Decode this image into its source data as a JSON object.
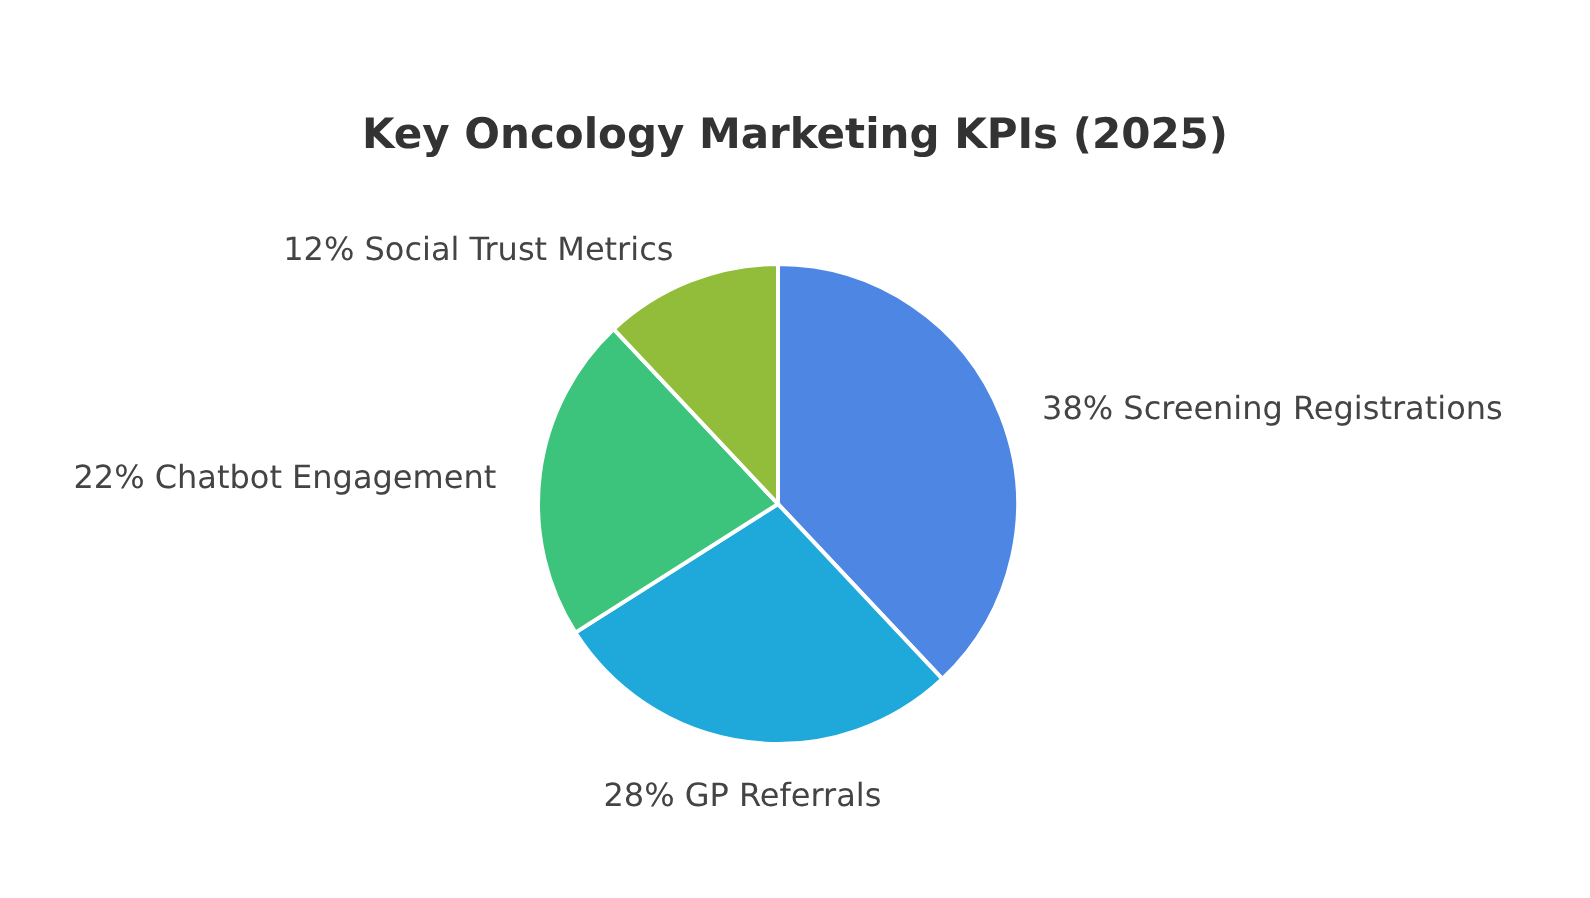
{
  "chart_data": {
    "type": "pie",
    "title": "Key Oncology Marketing KPIs (2025)",
    "categories": [
      "Screening Registrations",
      "GP Referrals",
      "Chatbot Engagement",
      "Social Trust Metrics"
    ],
    "values": [
      38,
      28,
      22,
      12
    ],
    "value_labels": [
      "38%",
      "28%",
      "22%",
      "12%"
    ],
    "colors": [
      "#4e86e4",
      "#1fa9db",
      "#3cc47c",
      "#91bd3a"
    ]
  }
}
